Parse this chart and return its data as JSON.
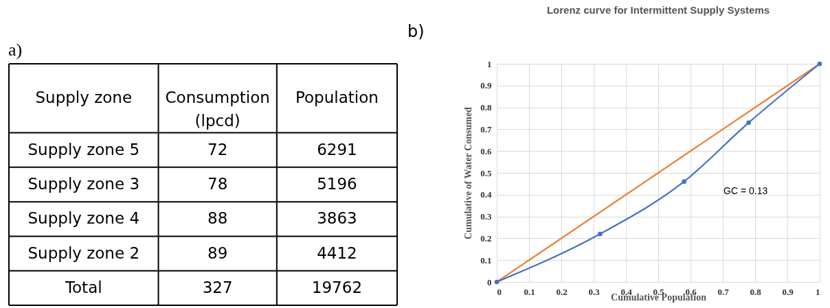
{
  "chart_data": [
    {
      "type": "other",
      "title": "a)",
      "xlabel": "Supply zone",
      "categories": [
        "Supply zone 5",
        "Supply zone 3",
        "Supply zone 4",
        "Supply zone 2"
      ],
      "series": [
        {
          "name": "Consumption (lpcd)",
          "values": [
            72,
            78,
            88,
            89
          ]
        },
        {
          "name": "Population",
          "values": [
            6291,
            5196,
            3863,
            4412
          ]
        }
      ],
      "data_labels": true,
      "annotations": [
        "Total"
      ],
      "totals": [
        "327",
        "19762"
      ]
    },
    {
      "type": "line",
      "title": "Lorenz curve for Intermittent Supply Systems",
      "xlabel": "Cumulative Population",
      "ylabel": "Cumulative  of Water Consumed",
      "series": [
        {
          "color": "#ed7d31",
          "marker": "none",
          "x": [
            0,
            1
          ],
          "values": [
            0,
            1
          ]
        },
        {
          "color": "#4472c4",
          "marker": "circle",
          "x": [
            0,
            0.32,
            0.58,
            0.78,
            1
          ],
          "values": [
            0,
            0.22,
            0.46,
            0.73,
            1
          ]
        }
      ],
      "xlim": [
        0,
        1
      ],
      "ylim": [
        0,
        1
      ],
      "xticks": [
        0,
        0.1,
        0.2,
        0.3,
        0.4,
        0.5,
        0.6,
        0.7,
        0.8,
        0.9,
        1
      ],
      "yticks": [
        0,
        0.1,
        0.2,
        0.3,
        0.4,
        0.5,
        0.6,
        0.7,
        0.8,
        0.9,
        1
      ],
      "grid": true,
      "annotations": [
        "b)",
        "GC = 0.13"
      ]
    }
  ]
}
